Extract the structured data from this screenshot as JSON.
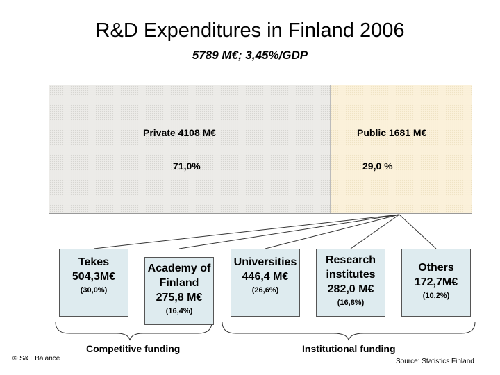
{
  "title": "R&D Expenditures in Finland 2006",
  "subtitle": "5789 M€; 3,45%/GDP",
  "private": {
    "label": "Private 4108 M€",
    "pct": "71,0%"
  },
  "public": {
    "label": "Public 1681 M€",
    "pct": "29,0 %"
  },
  "boxes": [
    {
      "lines": [
        "Tekes",
        "504,3M€"
      ],
      "pct": "(30,0%)"
    },
    {
      "lines": [
        "Academy of",
        "Finland",
        "275,8 M€"
      ],
      "pct": "(16,4%)"
    },
    {
      "lines": [
        "Universities",
        "446,4 M€"
      ],
      "pct": "(26,6%)"
    },
    {
      "lines": [
        "Research",
        "institutes",
        "282,0 M€"
      ],
      "pct": "(16,8%)"
    },
    {
      "lines": [
        "Others",
        "172,7M€"
      ],
      "pct": "(10,2%)"
    }
  ],
  "competitive": "Competitive funding",
  "institutional": "Institutional funding",
  "copyright": "© S&T Balance",
  "source": "Source: Statistics Finland"
}
